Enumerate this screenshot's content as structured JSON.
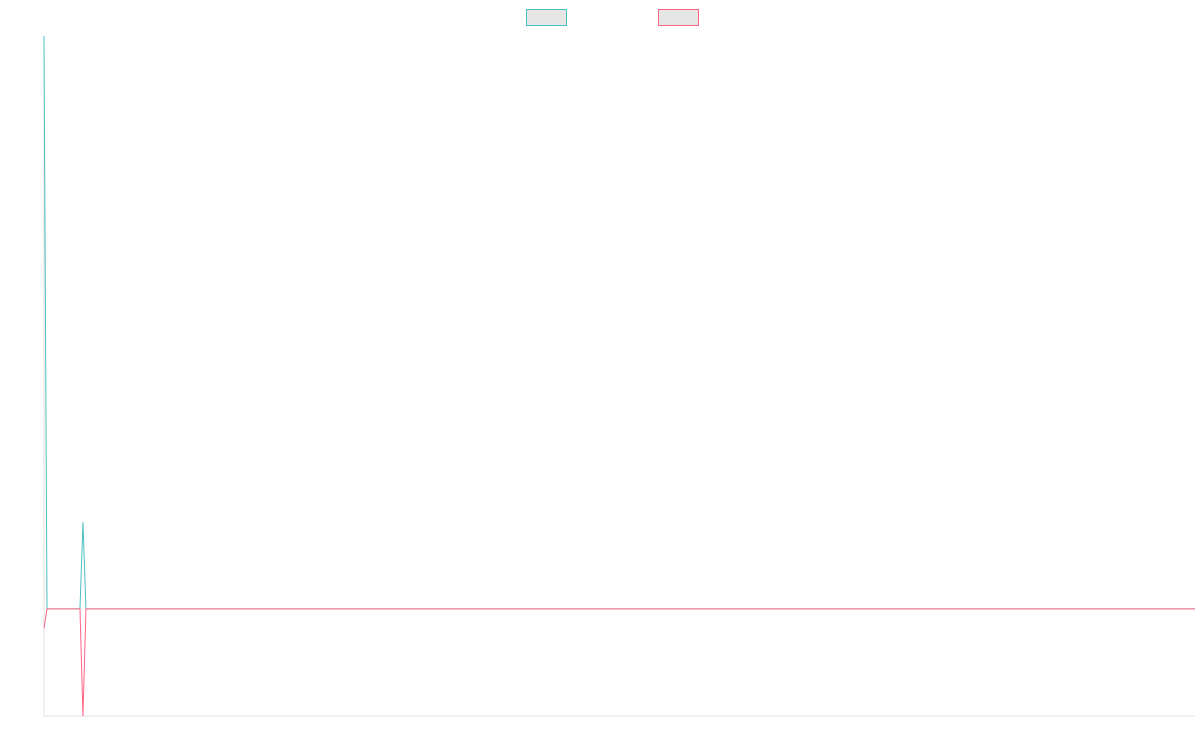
{
  "chart_data": {
    "type": "line",
    "x": [
      0,
      1,
      12,
      13,
      14,
      384
    ],
    "xlim": [
      0,
      384
    ],
    "ylim": [
      -1,
      5.35
    ],
    "grid": false,
    "legend": "top",
    "series": [
      {
        "color": "#4bc0c0",
        "values": [
          5.35,
          0,
          0,
          0.81,
          0,
          0
        ]
      },
      {
        "color": "#ff6384",
        "values": [
          -0.18,
          0,
          0,
          -1,
          0,
          0
        ]
      }
    ]
  }
}
